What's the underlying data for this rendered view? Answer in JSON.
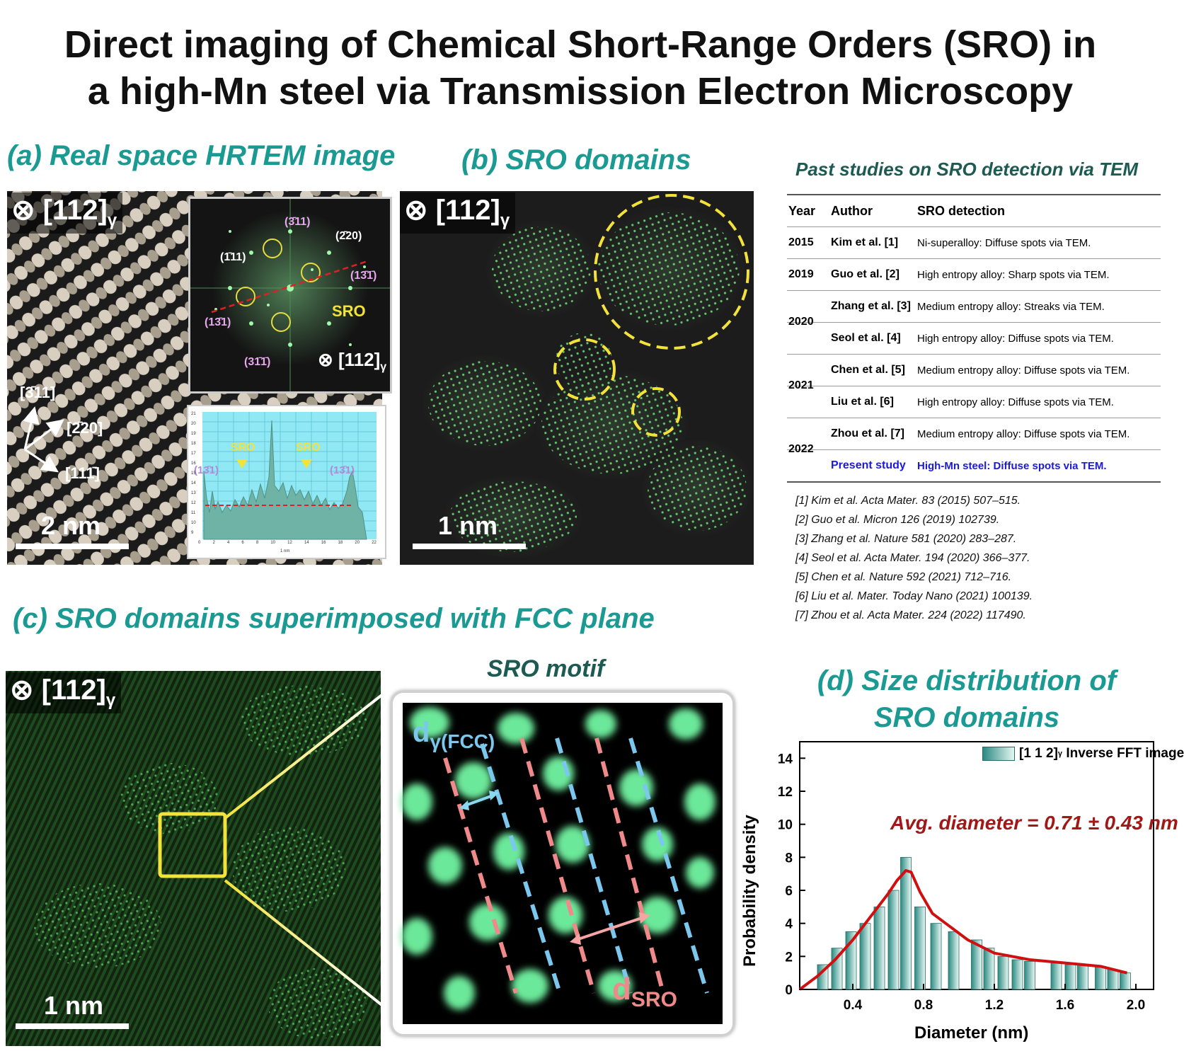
{
  "title_line1": "Direct imaging of Chemical Short-Range Orders (SRO) in",
  "title_line2": "a high-Mn steel via Transmission Electron Microscopy",
  "panel_a": {
    "title": "(a) Real space HRTEM image",
    "zone_axis": "⊗ [112]",
    "zone_sub": "γ",
    "scale": "2 nm",
    "dir_labels": [
      "[3̄11]",
      "[2̄20]",
      "[111̄]"
    ],
    "fft": {
      "labels": [
        "(3̄11)",
        "(2̄20)",
        "(1̄11)",
        "(13̄1̄)",
        "(13̄1)",
        "(31̄1̄)"
      ],
      "sro": "SRO",
      "zone": "⊗ [112]",
      "zone_sub": "γ"
    },
    "profile": {
      "sro1": "SRO",
      "sro2": "SRO",
      "left": "(13̄1)",
      "right": "(13̄1)",
      "xlabel": "1 nm",
      "yticks": [
        "21",
        "20",
        "19",
        "18",
        "17",
        "16",
        "15",
        "14",
        "13",
        "12",
        "11",
        "10",
        "9"
      ],
      "xticks": [
        "0",
        "2",
        "4",
        "6",
        "8",
        "10",
        "12",
        "14",
        "16",
        "18",
        "20",
        "22"
      ]
    }
  },
  "panel_b": {
    "title": "(b) SRO domains",
    "zone_axis": "⊗ [112]",
    "zone_sub": "γ",
    "scale": "1 nm"
  },
  "table": {
    "title": "Past studies on SRO detection via TEM",
    "headers": [
      "Year",
      "Author",
      "SRO detection"
    ],
    "rows": [
      {
        "year": "2015",
        "author": "Kim et al. [1]",
        "detection": "Ni-superalloy: Diffuse spots via TEM."
      },
      {
        "year": "2019",
        "author": "Guo et al. [2]",
        "detection": "High entropy alloy: Sharp spots via TEM."
      },
      {
        "year": "2020",
        "author": "Zhang et al. [3]",
        "detection": "Medium entropy alloy: Streaks via TEM."
      },
      {
        "year": "",
        "author": "Seol et al. [4]",
        "detection": "High entropy alloy: Diffuse spots via TEM."
      },
      {
        "year": "2021",
        "author": "Chen et al. [5]",
        "detection": "Medium entropy alloy: Diffuse spots via TEM."
      },
      {
        "year": "",
        "author": "Liu et al. [6]",
        "detection": "High entropy alloy: Diffuse spots via TEM."
      },
      {
        "year": "2022",
        "author": "Zhou et al. [7]",
        "detection": "Medium entropy alloy: Diffuse spots via TEM."
      },
      {
        "year": "",
        "author": "Present study",
        "detection": "High-Mn steel: Diffuse spots via TEM."
      }
    ],
    "refs": [
      "[1] Kim et al. Acta Mater. 83 (2015) 507–515.",
      "[2] Guo et al. Micron 126 (2019) 102739.",
      "[3] Zhang et al. Nature 581 (2020) 283–287.",
      "[4] Seol et al. Acta Mater. 194 (2020) 366–377.",
      "[5] Chen et al. Nature 592 (2021) 712–716.",
      "[6] Liu et al. Mater. Today Nano (2021) 100139.",
      "[7] Zhou et al. Acta Mater. 224 (2022) 117490."
    ]
  },
  "panel_c": {
    "title": "(c) SRO domains superimposed with FCC plane",
    "zone_axis": "⊗ [112]",
    "zone_sub": "γ",
    "scale": "1 nm",
    "motif_title": "SRO motif",
    "d_fcc": "d",
    "d_fcc_sub": "γ(FCC)",
    "d_sro": "d",
    "d_sro_sub": "SRO"
  },
  "panel_d": {
    "title_line1": "(d) Size distribution of",
    "title_line2": "SRO domains"
  },
  "chart_data": {
    "type": "bar",
    "xlabel": "Diameter (nm)",
    "ylabel": "Probability density",
    "legend_main": "[1 1 2]",
    "legend_sub": "γ",
    "legend_tail": " Inverse FFT image",
    "legend_position": "top-right",
    "annotation": "Avg. diameter = 0.71 ± 0.43 nm",
    "xlim": [
      0.1,
      2.1
    ],
    "ylim": [
      0,
      15
    ],
    "xticks": [
      0.4,
      0.8,
      1.2,
      1.6,
      2.0
    ],
    "xtick_labels": [
      "0.4",
      "0.8",
      "1.2",
      "1.6",
      "2.0"
    ],
    "yticks": [
      0,
      2,
      4,
      6,
      8,
      10,
      12,
      14
    ],
    "bar_width": 0.06,
    "bars": {
      "x": [
        0.23,
        0.31,
        0.39,
        0.47,
        0.55,
        0.63,
        0.7,
        0.78,
        0.87,
        0.97,
        1.1,
        1.17,
        1.25,
        1.33,
        1.4,
        1.55,
        1.63,
        1.7,
        1.8,
        1.87,
        1.94
      ],
      "y": [
        1.5,
        2.5,
        3.5,
        4.0,
        5.0,
        6.0,
        8.0,
        5.0,
        4.0,
        3.5,
        3.0,
        2.5,
        2.0,
        1.8,
        1.7,
        1.6,
        1.5,
        1.5,
        1.4,
        1.2,
        1.0
      ]
    },
    "fit": {
      "x": [
        0.1,
        0.2,
        0.3,
        0.4,
        0.5,
        0.6,
        0.65,
        0.7,
        0.73,
        0.78,
        0.85,
        0.95,
        1.05,
        1.2,
        1.4,
        1.6,
        1.8,
        1.95
      ],
      "y": [
        0.0,
        0.8,
        1.8,
        3.0,
        4.4,
        5.8,
        6.6,
        7.2,
        7.1,
        5.9,
        4.6,
        3.8,
        3.0,
        2.2,
        1.8,
        1.6,
        1.4,
        1.0
      ]
    },
    "colors": {
      "bar": "#2a8a82",
      "fit": "#d01010",
      "annotation": "#a01818"
    }
  }
}
